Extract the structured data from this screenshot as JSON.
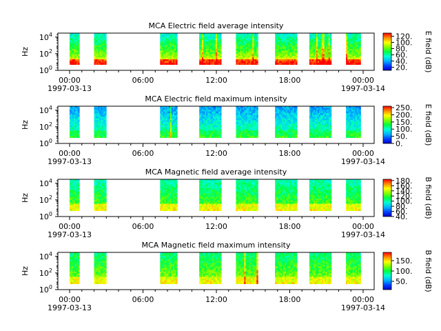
{
  "chart_data": [
    {
      "type": "heatmap",
      "title": "MCA  Electric field average intensity",
      "ylabel": "Hz",
      "colorbar_label": "E field (dB)",
      "colorbar_ticks": [
        "120.",
        "100.",
        "80.",
        "60.",
        "40.",
        "20."
      ],
      "colorbar_range": [
        10,
        130
      ],
      "y_ticks": [
        "10^4",
        "10^2",
        "10^0"
      ],
      "ylim": [
        1,
        30000
      ],
      "x_ticks": [
        "00:00",
        "06:00",
        "12:00",
        "18:00",
        "00:00"
      ],
      "x_dates": [
        "1997-03-13",
        "1997-03-14"
      ],
      "data_intervals_hours": [
        [
          0.0,
          0.4
        ],
        [
          1.0,
          1.5
        ],
        [
          3.7,
          4.4
        ],
        [
          5.3,
          6.2
        ],
        [
          6.8,
          7.7
        ],
        [
          8.4,
          9.3
        ],
        [
          9.8,
          10.7
        ],
        [
          11.3,
          11.9
        ]
      ],
      "freq_range_hz": [
        5,
        30000
      ]
    },
    {
      "type": "heatmap",
      "title": "MCA  Electric field maximum intensity",
      "ylabel": "Hz",
      "colorbar_label": "E field (dB)",
      "colorbar_ticks": [
        "250.",
        "200.",
        "150.",
        "100.",
        "50.",
        "0."
      ],
      "colorbar_range": [
        0,
        260
      ],
      "y_ticks": [
        "10^4",
        "10^2",
        "10^0"
      ],
      "ylim": [
        1,
        30000
      ],
      "x_ticks": [
        "00:00",
        "06:00",
        "12:00",
        "18:00",
        "00:00"
      ],
      "x_dates": [
        "1997-03-13",
        "1997-03-14"
      ],
      "data_intervals_hours": [
        [
          0.0,
          0.4
        ],
        [
          1.0,
          1.5
        ],
        [
          3.7,
          4.4
        ],
        [
          5.3,
          6.2
        ],
        [
          6.8,
          7.7
        ],
        [
          8.4,
          9.3
        ],
        [
          9.8,
          10.7
        ],
        [
          11.3,
          11.9
        ]
      ],
      "freq_range_hz": [
        5,
        30000
      ]
    },
    {
      "type": "heatmap",
      "title": "MCA  Magnetic field average intensity",
      "ylabel": "Hz",
      "colorbar_label": "B field (dB)",
      "colorbar_ticks": [
        "180.",
        "160.",
        "140.",
        "120.",
        "100.",
        "80.",
        "60.",
        "40."
      ],
      "colorbar_range": [
        40,
        185
      ],
      "y_ticks": [
        "10^4",
        "10^2",
        "10^0"
      ],
      "ylim": [
        1,
        30000
      ],
      "x_ticks": [
        "00:00",
        "06:00",
        "12:00",
        "18:00",
        "00:00"
      ],
      "x_dates": [
        "1997-03-13",
        "1997-03-14"
      ],
      "data_intervals_hours": [
        [
          0.0,
          0.4
        ],
        [
          1.0,
          1.5
        ],
        [
          3.7,
          4.4
        ],
        [
          5.3,
          6.2
        ],
        [
          6.8,
          7.7
        ],
        [
          8.4,
          9.3
        ],
        [
          9.8,
          10.7
        ],
        [
          11.3,
          11.9
        ]
      ],
      "freq_range_hz": [
        5,
        30000
      ]
    },
    {
      "type": "heatmap",
      "title": "MCA  Magnetic field maximum intensity",
      "ylabel": "Hz",
      "colorbar_label": "B field (dB)",
      "colorbar_ticks": [
        "150.",
        "100.",
        "50."
      ],
      "colorbar_range": [
        10,
        190
      ],
      "y_ticks": [
        "10^4",
        "10^2",
        "10^0"
      ],
      "ylim": [
        1,
        30000
      ],
      "x_ticks": [
        "00:00",
        "06:00",
        "12:00",
        "18:00",
        "00:00"
      ],
      "x_dates": [
        "1997-03-13",
        "1997-03-14"
      ],
      "data_intervals_hours": [
        [
          0.0,
          0.4
        ],
        [
          1.0,
          1.5
        ],
        [
          3.7,
          4.4
        ],
        [
          5.3,
          6.2
        ],
        [
          6.8,
          7.7
        ],
        [
          8.4,
          9.3
        ],
        [
          9.8,
          10.7
        ],
        [
          11.3,
          11.9
        ]
      ],
      "freq_range_hz": [
        5,
        30000
      ]
    }
  ]
}
